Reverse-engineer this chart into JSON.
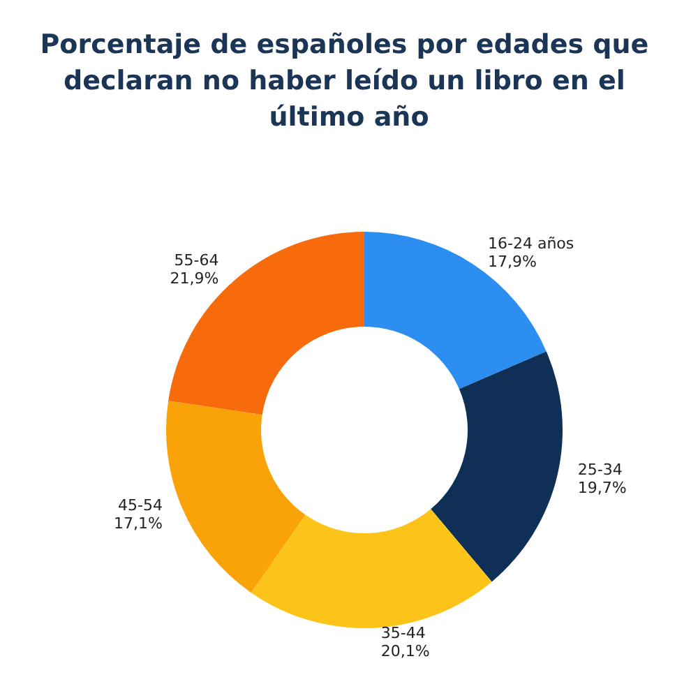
{
  "chart_data": {
    "type": "donut",
    "title": "Porcentaje de españoles por edades que declaran no haber leído un libro en el último año",
    "categories": [
      "16-24 años",
      "25-34",
      "35-44",
      "45-54",
      "55-64"
    ],
    "values": [
      17.9,
      19.7,
      20.1,
      17.1,
      21.9
    ],
    "value_labels": [
      "17,9%",
      "19,7%",
      "20,1%",
      "17,1%",
      "21,9%"
    ],
    "colors": [
      "#2b8ef0",
      "#0f2f57",
      "#fcc419",
      "#f9a308",
      "#f76b0c"
    ],
    "legend": false
  }
}
